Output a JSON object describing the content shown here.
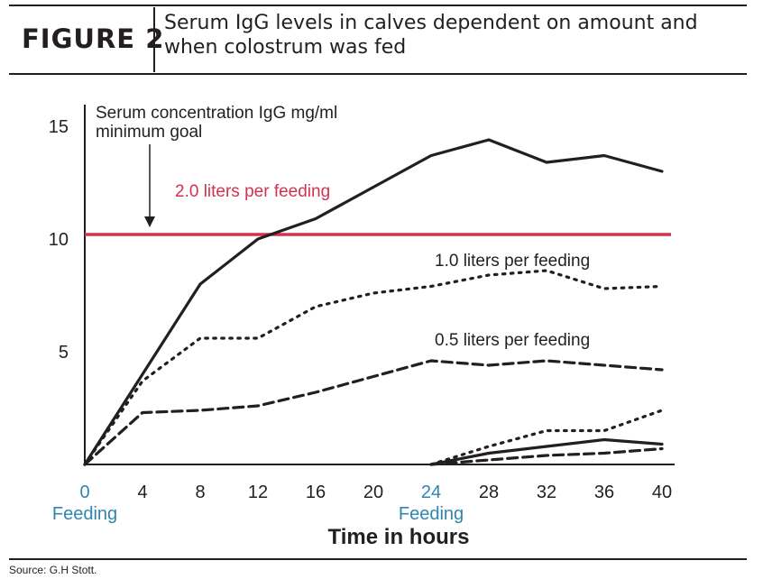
{
  "figure": {
    "label": "FIGURE 2",
    "title": "Serum IgG levels in calves dependent on amount and when colostrum was fed"
  },
  "source": "Source: G.H Stott.",
  "colors": {
    "goal_line": "#d1334f",
    "feeding_label": "#2e86b0",
    "ink": "#231f20"
  },
  "chart_data": {
    "type": "line",
    "title": "",
    "xlabel": "Time in hours",
    "ylabel": "Serum concentration IgG mg/ml",
    "xlim": [
      0,
      40
    ],
    "ylim": [
      0,
      15
    ],
    "x_ticks": [
      0,
      4,
      8,
      12,
      16,
      20,
      24,
      28,
      32,
      36,
      40
    ],
    "y_ticks": [
      5,
      10,
      15
    ],
    "feeding_markers": [
      {
        "x": 0,
        "label": "Feeding"
      },
      {
        "x": 24,
        "label": "Feeding"
      }
    ],
    "goal": {
      "y": 10.2,
      "label": "minimum goal",
      "color": "#d1334f"
    },
    "annotations": [
      {
        "text": "2.0 liters per feeding",
        "color": "#d1334f"
      },
      {
        "text": "1.0 liters per feeding",
        "color": "#231f20"
      },
      {
        "text": "0.5 liters per feeding",
        "color": "#231f20"
      }
    ],
    "series": [
      {
        "style": "solid",
        "group": "fed at 0 h",
        "x": [
          0,
          4,
          8,
          12,
          16,
          20,
          24,
          28,
          32,
          36,
          40
        ],
        "y": [
          0,
          4.0,
          8.0,
          10.0,
          10.9,
          12.3,
          13.7,
          14.4,
          13.4,
          13.7,
          13.0
        ]
      },
      {
        "style": "dotted",
        "group": "fed at 0 h",
        "x": [
          0,
          4,
          8,
          12,
          16,
          20,
          24,
          28,
          32,
          36,
          40
        ],
        "y": [
          0,
          3.7,
          5.6,
          5.6,
          7.0,
          7.6,
          7.9,
          8.4,
          8.6,
          7.8,
          7.9
        ]
      },
      {
        "style": "dashed",
        "group": "fed at 0 h",
        "x": [
          0,
          4,
          8,
          12,
          16,
          20,
          24,
          28,
          32,
          36,
          40
        ],
        "y": [
          0,
          2.3,
          2.4,
          2.6,
          3.2,
          3.9,
          4.6,
          4.4,
          4.6,
          4.4,
          4.2
        ]
      },
      {
        "style": "solid",
        "group": "fed at 24 h",
        "x": [
          24,
          28,
          32,
          36,
          40
        ],
        "y": [
          0,
          0.5,
          0.8,
          1.1,
          0.9
        ]
      },
      {
        "style": "dotted",
        "group": "fed at 24 h",
        "x": [
          24,
          28,
          32,
          36,
          40
        ],
        "y": [
          0,
          0.8,
          1.5,
          1.5,
          2.4
        ]
      },
      {
        "style": "dashed",
        "group": "fed at 24 h",
        "x": [
          24,
          28,
          32,
          36,
          40
        ],
        "y": [
          0,
          0.2,
          0.4,
          0.5,
          0.7
        ]
      }
    ],
    "grid": false,
    "legend": "none"
  }
}
